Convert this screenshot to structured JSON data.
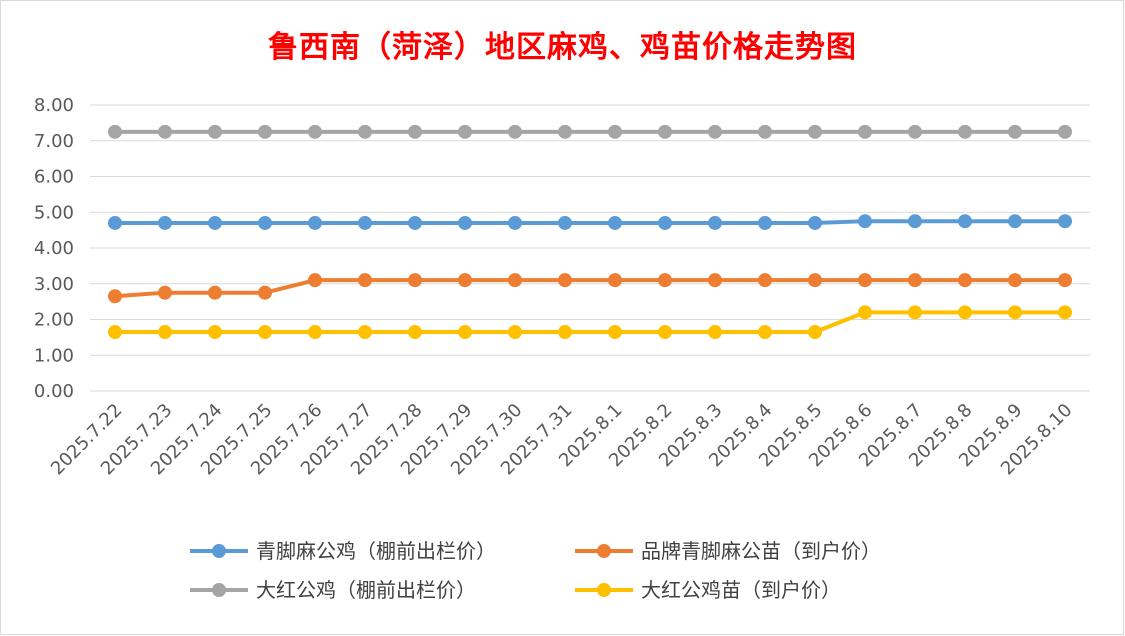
{
  "chart_data": {
    "type": "line",
    "title": "鲁西南（菏泽）地区麻鸡、鸡苗价格走势图",
    "categories": [
      "2025.7.22",
      "2025.7.23",
      "2025.7.24",
      "2025.7.25",
      "2025.7.26",
      "2025.7.27",
      "2025.7.28",
      "2025.7.29",
      "2025.7.30",
      "2025.7.31",
      "2025.8.1",
      "2025.8.2",
      "2025.8.3",
      "2025.8.4",
      "2025.8.5",
      "2025.8.6",
      "2025.8.7",
      "2025.8.8",
      "2025.8.9",
      "2025.8.10"
    ],
    "ylim": [
      0,
      8
    ],
    "yticks": [
      "0.00",
      "1.00",
      "2.00",
      "3.00",
      "4.00",
      "5.00",
      "6.00",
      "7.00",
      "8.00"
    ],
    "grid": true,
    "legend_position": "bottom",
    "series": [
      {
        "name": "青脚麻公鸡（棚前出栏价）",
        "color": "#5b9bd5",
        "values": [
          4.7,
          4.7,
          4.7,
          4.7,
          4.7,
          4.7,
          4.7,
          4.7,
          4.7,
          4.7,
          4.7,
          4.7,
          4.7,
          4.7,
          4.7,
          4.75,
          4.75,
          4.75,
          4.75,
          4.75
        ]
      },
      {
        "name": "品牌青脚麻公苗（到户价）",
        "color": "#ed7d31",
        "values": [
          2.65,
          2.75,
          2.75,
          2.75,
          3.1,
          3.1,
          3.1,
          3.1,
          3.1,
          3.1,
          3.1,
          3.1,
          3.1,
          3.1,
          3.1,
          3.1,
          3.1,
          3.1,
          3.1,
          3.1
        ]
      },
      {
        "name": "大红公鸡（棚前出栏价）",
        "color": "#a5a5a5",
        "values": [
          7.25,
          7.25,
          7.25,
          7.25,
          7.25,
          7.25,
          7.25,
          7.25,
          7.25,
          7.25,
          7.25,
          7.25,
          7.25,
          7.25,
          7.25,
          7.25,
          7.25,
          7.25,
          7.25,
          7.25
        ]
      },
      {
        "name": "大红公鸡苗（到户价）",
        "color": "#ffc000",
        "values": [
          1.65,
          1.65,
          1.65,
          1.65,
          1.65,
          1.65,
          1.65,
          1.65,
          1.65,
          1.65,
          1.65,
          1.65,
          1.65,
          1.65,
          1.65,
          2.2,
          2.2,
          2.2,
          2.2,
          2.2
        ]
      }
    ]
  }
}
